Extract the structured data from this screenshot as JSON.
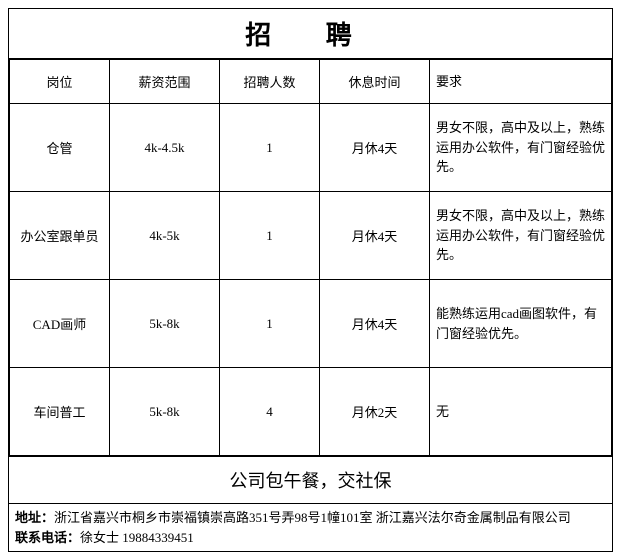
{
  "title": "招 聘",
  "headers": {
    "position": "岗位",
    "salary": "薪资范围",
    "count": "招聘人数",
    "rest": "休息时间",
    "req": "要求"
  },
  "rows": [
    {
      "position": "仓管",
      "salary": "4k-4.5k",
      "count": "1",
      "rest": "月休4天",
      "req": "男女不限，高中及以上，熟练运用办公软件，有门窗经验优先。"
    },
    {
      "position": "办公室跟单员",
      "salary": "4k-5k",
      "count": "1",
      "rest": "月休4天",
      "req": "男女不限，高中及以上，熟练运用办公软件，有门窗经验优先。"
    },
    {
      "position": "CAD画师",
      "salary": "5k-8k",
      "count": "1",
      "rest": "月休4天",
      "req": "能熟练运用cad画图软件，有门窗经验优先。"
    },
    {
      "position": "车间普工",
      "salary": "5k-8k",
      "count": "4",
      "rest": "月休2天",
      "req": "无"
    }
  ],
  "benefits": "公司包午餐，交社保",
  "footer": {
    "address_label": "地址：",
    "address": "浙江省嘉兴市桐乡市崇福镇崇高路351号弄98号1幢101室  浙江嘉兴法尔奇金属制品有限公司",
    "contact_label": "联系电话：",
    "contact": "徐女士 19884339451"
  }
}
